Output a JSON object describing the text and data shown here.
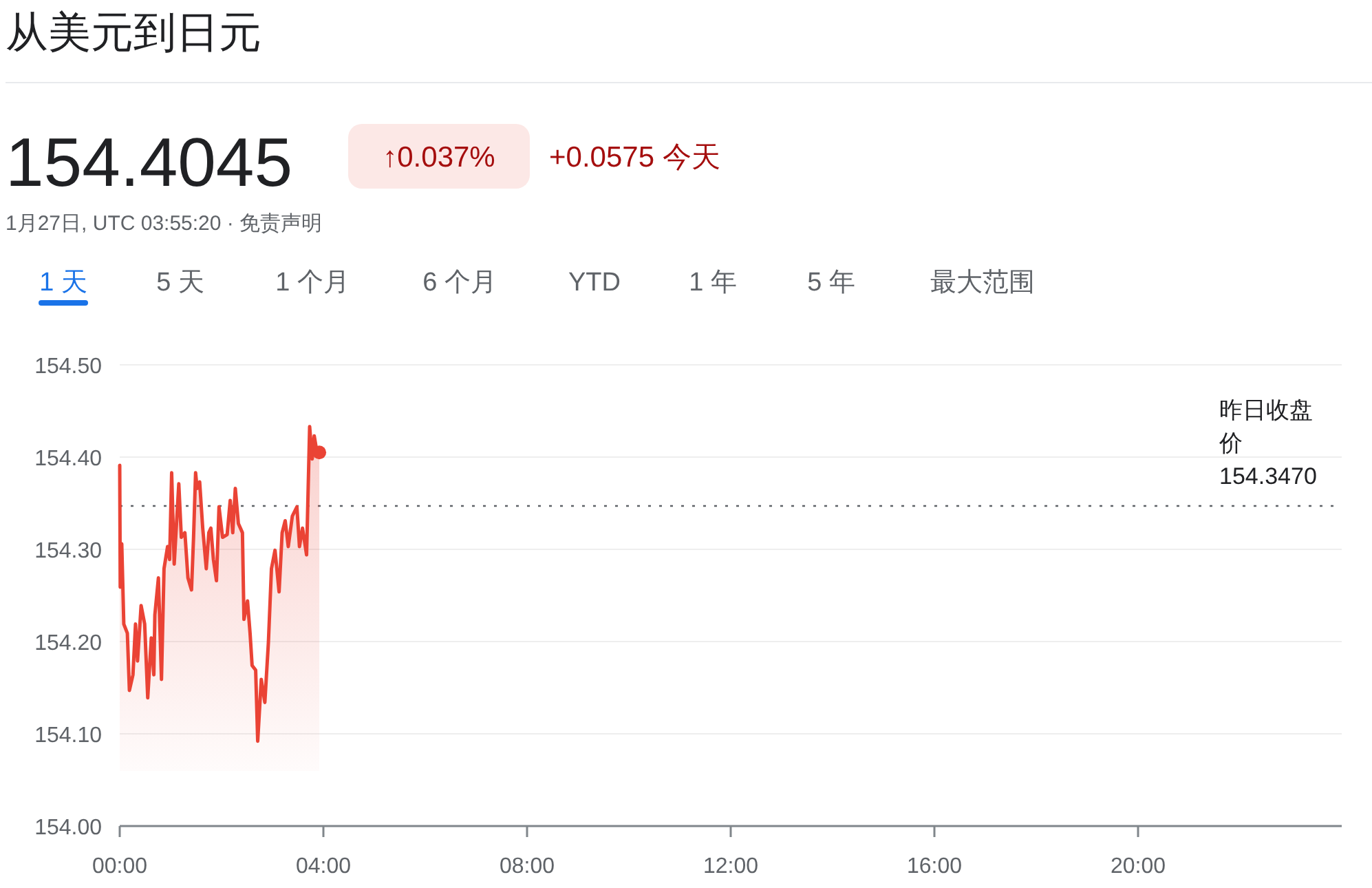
{
  "chart_data": {
    "type": "area",
    "title": "从美元到日元",
    "annotations": [
      "154.4045",
      "↑0.037%",
      "+0.0575 今天",
      "1月27日, UTC 03:55:20 · 免责声明",
      "1 天",
      "5 天",
      "1 个月",
      "6 个月",
      "YTD",
      "1 年",
      "5 年",
      "最大范围"
    ],
    "x": [
      0,
      0.01,
      0.04,
      0.08,
      0.15,
      0.19,
      0.26,
      0.31,
      0.35,
      0.42,
      0.49,
      0.55,
      0.62,
      0.67,
      0.69,
      0.76,
      0.82,
      0.87,
      0.94,
      0.98,
      1.02,
      1.07,
      1.16,
      1.21,
      1.28,
      1.34,
      1.41,
      1.45,
      1.49,
      1.52,
      1.57,
      1.63,
      1.7,
      1.75,
      1.79,
      1.84,
      1.9,
      1.95,
      2.02,
      2.11,
      2.17,
      2.22,
      2.27,
      2.33,
      2.41,
      2.44,
      2.51,
      2.56,
      2.6,
      2.67,
      2.71,
      2.78,
      2.85,
      2.92,
      2.98,
      3.05,
      3.13,
      3.19,
      3.25,
      3.31,
      3.39,
      3.48,
      3.53,
      3.59,
      3.67,
      3.73,
      3.78,
      3.82,
      3.88,
      3.92
    ],
    "series": [
      {
        "color": "#ea4335",
        "values": [
          154.391,
          154.259,
          154.306,
          154.219,
          154.209,
          154.147,
          154.164,
          154.219,
          154.179,
          154.239,
          154.219,
          154.139,
          154.204,
          154.164,
          154.229,
          154.269,
          154.159,
          154.279,
          154.303,
          154.289,
          154.383,
          154.284,
          154.371,
          154.313,
          154.318,
          154.269,
          154.256,
          154.313,
          154.383,
          154.366,
          154.373,
          154.323,
          154.279,
          154.318,
          154.323,
          154.289,
          154.266,
          154.346,
          154.313,
          154.316,
          154.353,
          154.318,
          154.366,
          154.328,
          154.318,
          154.224,
          154.244,
          154.209,
          154.174,
          154.169,
          154.092,
          154.159,
          154.134,
          154.199,
          154.279,
          154.299,
          154.254,
          154.318,
          154.331,
          154.303,
          154.336,
          154.346,
          154.303,
          154.323,
          154.294,
          154.433,
          154.398,
          154.423,
          154.403,
          154.405
        ]
      }
    ],
    "xlim": [
      0,
      24
    ],
    "xticks": [
      {
        "value": 0,
        "label": "00:00"
      },
      {
        "value": 4,
        "label": "04:00"
      },
      {
        "value": 8,
        "label": "08:00"
      },
      {
        "value": 12,
        "label": "12:00"
      },
      {
        "value": 16,
        "label": "16:00"
      },
      {
        "value": 20,
        "label": "20:00"
      }
    ],
    "ylim": [
      154,
      154.5
    ],
    "yticks": [
      {
        "value": 154,
        "label": "154.00"
      },
      {
        "value": 154.1,
        "label": "154.10"
      },
      {
        "value": 154.2,
        "label": "154.20"
      },
      {
        "value": 154.3,
        "label": "154.30"
      },
      {
        "value": 154.4,
        "label": "154.40"
      },
      {
        "value": 154.5,
        "label": "154.50"
      }
    ],
    "grid": "y",
    "ref_lines": [
      {
        "axis": "y",
        "value": 154.347,
        "label": "昨日收盘价 154.3470",
        "line_style": "dotted",
        "color": "#5f6368"
      }
    ]
  }
}
